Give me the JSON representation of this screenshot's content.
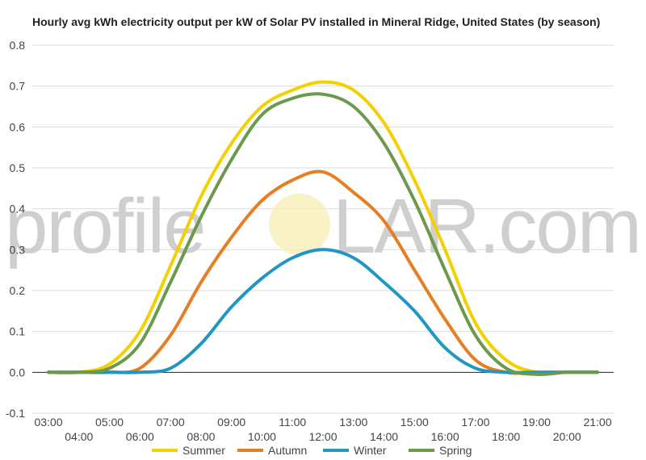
{
  "chart_data": {
    "type": "line",
    "title": "Hourly avg kWh electricity output per kW of Solar PV installed in Mineral Ridge, United States (by season)",
    "x": [
      "03:00",
      "04:00",
      "05:00",
      "06:00",
      "07:00",
      "08:00",
      "09:00",
      "10:00",
      "11:00",
      "12:00",
      "13:00",
      "14:00",
      "15:00",
      "16:00",
      "17:00",
      "18:00",
      "19:00",
      "20:00",
      "21:00"
    ],
    "ylim": [
      -0.1,
      0.8
    ],
    "yticks": [
      "-0.1",
      "0.0",
      "0.1",
      "0.2",
      "0.3",
      "0.4",
      "0.5",
      "0.6",
      "0.7",
      "0.8"
    ],
    "ytick_values": [
      -0.1,
      0.0,
      0.1,
      0.2,
      0.3,
      0.4,
      0.5,
      0.6,
      0.7,
      0.8
    ],
    "grid": true,
    "legend_position": "bottom",
    "series": [
      {
        "name": "Summer",
        "color": "#f5d000",
        "values": [
          0.0,
          0.0,
          0.02,
          0.1,
          0.26,
          0.43,
          0.56,
          0.65,
          0.69,
          0.71,
          0.69,
          0.61,
          0.47,
          0.3,
          0.12,
          0.03,
          0.0,
          0.0,
          0.0
        ]
      },
      {
        "name": "Autumn",
        "color": "#e67e22",
        "values": [
          0.0,
          0.0,
          0.0,
          0.01,
          0.09,
          0.22,
          0.33,
          0.42,
          0.47,
          0.49,
          0.44,
          0.37,
          0.25,
          0.13,
          0.03,
          0.0,
          0.0,
          0.0,
          0.0
        ]
      },
      {
        "name": "Winter",
        "color": "#2196c4",
        "values": [
          0.0,
          0.0,
          0.0,
          0.0,
          0.01,
          0.07,
          0.16,
          0.23,
          0.28,
          0.3,
          0.28,
          0.22,
          0.15,
          0.06,
          0.01,
          0.0,
          0.0,
          0.0,
          0.0
        ]
      },
      {
        "name": "Spring",
        "color": "#6b9a4c",
        "values": [
          0.0,
          0.0,
          0.01,
          0.07,
          0.22,
          0.38,
          0.52,
          0.63,
          0.67,
          0.68,
          0.65,
          0.56,
          0.42,
          0.25,
          0.09,
          0.01,
          -0.005,
          0.0,
          0.0
        ]
      }
    ]
  },
  "watermark": {
    "left": "profile",
    "right": "LAR.com"
  }
}
